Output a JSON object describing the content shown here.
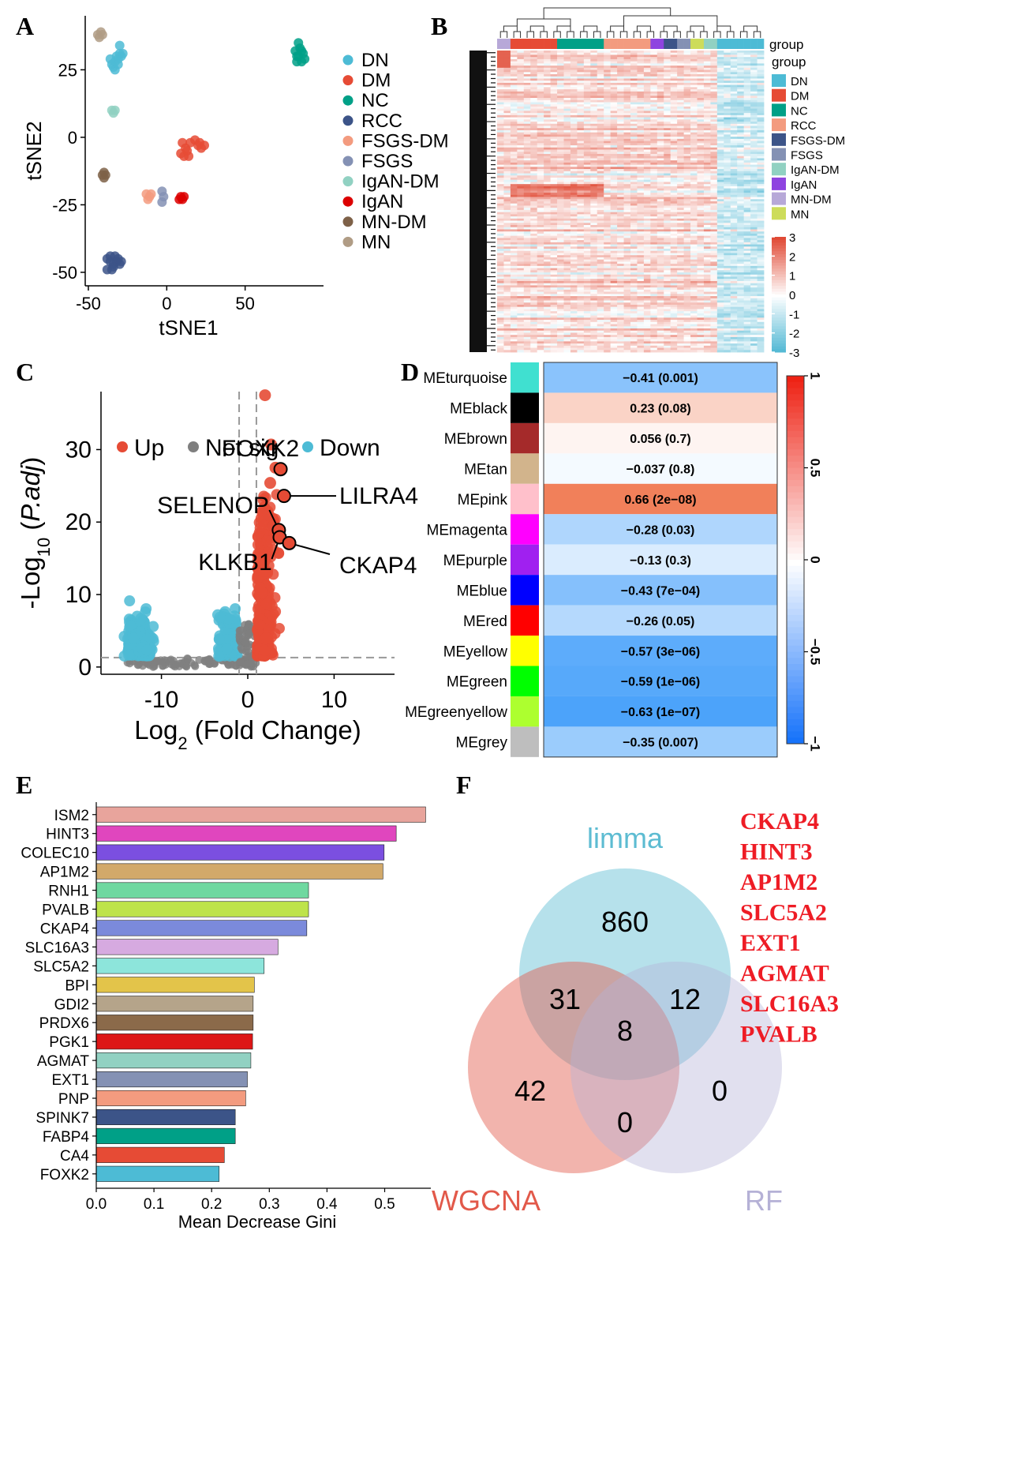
{
  "panel_labels": [
    "A",
    "B",
    "C",
    "D",
    "E",
    "F"
  ],
  "chart_data": [
    {
      "panel": "A",
      "type": "scatter",
      "xlabel": "tSNE1",
      "ylabel": "tSNE2",
      "xlim": [
        -52,
        100
      ],
      "ylim": [
        -55,
        45
      ],
      "xticks": [
        -50,
        0,
        50
      ],
      "yticks": [
        -50,
        -25,
        0,
        25
      ],
      "legend_position": "right",
      "series": [
        {
          "name": "DN",
          "color": "#4DBBD5",
          "points": [
            [
              -35,
              27
            ],
            [
              -33,
              28
            ],
            [
              -31,
              29
            ],
            [
              -30,
              31
            ],
            [
              -32,
              30
            ],
            [
              -34,
              26
            ],
            [
              -29,
              30
            ],
            [
              -33,
              25
            ],
            [
              -31,
              27
            ],
            [
              -28,
              31
            ],
            [
              -30,
              34
            ],
            [
              -36,
              29
            ]
          ]
        },
        {
          "name": "DM",
          "color": "#E64B35",
          "points": [
            [
              9,
              -6
            ],
            [
              12,
              -4
            ],
            [
              15,
              -2
            ],
            [
              18,
              -1
            ],
            [
              20,
              -3
            ],
            [
              22,
              -4
            ],
            [
              24,
              -3
            ],
            [
              11,
              -7
            ],
            [
              13,
              -5
            ],
            [
              10,
              -2
            ],
            [
              21,
              -2
            ],
            [
              14,
              -7
            ]
          ]
        },
        {
          "name": "NC",
          "color": "#00A087",
          "points": [
            [
              82,
              32
            ],
            [
              84,
              30
            ],
            [
              86,
              28
            ],
            [
              87,
              31
            ],
            [
              85,
              33
            ],
            [
              83,
              28
            ],
            [
              88,
              29
            ],
            [
              84,
              35
            ],
            [
              86,
              32
            ],
            [
              83,
              30
            ]
          ]
        },
        {
          "name": "RCC",
          "color": "#3C5488",
          "points": [
            [
              -38,
              -45
            ],
            [
              -36,
              -46
            ],
            [
              -34,
              -47
            ],
            [
              -32,
              -46
            ],
            [
              -30,
              -47
            ],
            [
              -35,
              -49
            ],
            [
              -38,
              -49
            ],
            [
              -33,
              -44
            ],
            [
              -31,
              -45
            ],
            [
              -36,
              -44
            ],
            [
              -34,
              -48
            ],
            [
              -29,
              -46
            ]
          ]
        },
        {
          "name": "FSGS-DM",
          "color": "#F39B7F",
          "points": [
            [
              -13,
              -21
            ],
            [
              -11,
              -22
            ],
            [
              -12,
              -23
            ],
            [
              -10,
              -21
            ]
          ]
        },
        {
          "name": "FSGS",
          "color": "#8491B4",
          "points": [
            [
              -3,
              -20
            ],
            [
              -2,
              -22
            ],
            [
              -3,
              -24
            ]
          ]
        },
        {
          "name": "IgAN-DM",
          "color": "#91D1C2",
          "points": [
            [
              -35,
              10
            ],
            [
              -33,
              10
            ],
            [
              -34,
              9
            ]
          ]
        },
        {
          "name": "IgAN",
          "color": "#DC0000",
          "points": [
            [
              9,
              -22
            ],
            [
              10,
              -23
            ],
            [
              11,
              -22
            ],
            [
              8,
              -23
            ]
          ]
        },
        {
          "name": "MN-DM",
          "color": "#7E6148",
          "points": [
            [
              -40,
              -13
            ],
            [
              -39,
              -14
            ],
            [
              -41,
              -14
            ],
            [
              -40,
              -15
            ]
          ]
        },
        {
          "name": "MN",
          "color": "#B09C85",
          "points": [
            [
              -44,
              38
            ],
            [
              -42,
              39
            ],
            [
              -43,
              37
            ],
            [
              -41,
              38
            ]
          ]
        }
      ]
    },
    {
      "panel": "B",
      "type": "heatmap",
      "annotation_label": "group",
      "legend_title": "group",
      "groups": [
        {
          "name": "DN",
          "color": "#4DBBD5"
        },
        {
          "name": "DM",
          "color": "#E64B35"
        },
        {
          "name": "NC",
          "color": "#00A087"
        },
        {
          "name": "RCC",
          "color": "#F39B7F"
        },
        {
          "name": "FSGS-DM",
          "color": "#3C5488"
        },
        {
          "name": "FSGS",
          "color": "#8491B4"
        },
        {
          "name": "IgAN-DM",
          "color": "#91D1C2"
        },
        {
          "name": "IgAN",
          "color": "#8E44E0"
        },
        {
          "name": "MN-DM",
          "color": "#B7A8D8"
        },
        {
          "name": "MN",
          "color": "#CDDC5A"
        }
      ],
      "column_groups": [
        {
          "group": "MN-DM",
          "n": 2
        },
        {
          "group": "DM",
          "n": 7
        },
        {
          "group": "NC",
          "n": 7
        },
        {
          "group": "RCC",
          "n": 7
        },
        {
          "group": "IgAN",
          "n": 2
        },
        {
          "group": "FSGS-DM",
          "n": 2
        },
        {
          "group": "FSGS",
          "n": 2
        },
        {
          "group": "MN",
          "n": 2
        },
        {
          "group": "IgAN-DM",
          "n": 2
        },
        {
          "group": "DN",
          "n": 7
        }
      ],
      "color_scale": {
        "min": -3,
        "max": 3,
        "ticks": [
          3,
          2,
          1,
          0,
          -1,
          -2,
          -3
        ],
        "low": "#4DB6D3",
        "mid": "#FFFFFF",
        "high": "#E04A35"
      }
    },
    {
      "panel": "C",
      "type": "scatter",
      "xlabel": "Log2 (Fold Change)",
      "ylabel": "-Log10(P.adj)",
      "xlim": [
        -17,
        17
      ],
      "ylim": [
        -1,
        38
      ],
      "xticks": [
        -10,
        0,
        10
      ],
      "yticks": [
        0,
        10,
        20,
        30
      ],
      "thresholds": {
        "x": [
          -1,
          1
        ],
        "y": 1.3
      },
      "legend": [
        {
          "name": "Up",
          "color": "#E64B35"
        },
        {
          "name": "Not sig",
          "color": "#7F7F7F"
        },
        {
          "name": "Down",
          "color": "#4DBBD5"
        }
      ],
      "labeled_genes": [
        {
          "gene": "FOXK2",
          "x": 3.8,
          "y": 27.3
        },
        {
          "gene": "LILRA4",
          "x": 4.2,
          "y": 23.6
        },
        {
          "gene": "SELENOP",
          "x": 3.6,
          "y": 18.9
        },
        {
          "gene": "KLKB1",
          "x": 3.7,
          "y": 17.9
        },
        {
          "gene": "CKAP4",
          "x": 4.8,
          "y": 17.1
        }
      ]
    },
    {
      "panel": "D",
      "type": "heatmap",
      "rows": [
        {
          "module": "MEturquoise",
          "swatch": "#40E0D0",
          "r": -0.41,
          "label": "−0.41 (0.001)"
        },
        {
          "module": "MEblack",
          "swatch": "#000000",
          "r": 0.23,
          "label": "0.23 (0.08)"
        },
        {
          "module": "MEbrown",
          "swatch": "#A52A2A",
          "r": 0.056,
          "label": "0.056 (0.7)"
        },
        {
          "module": "MEtan",
          "swatch": "#D2B48C",
          "r": -0.037,
          "label": "−0.037 (0.8)"
        },
        {
          "module": "MEpink",
          "swatch": "#FFC0CB",
          "r": 0.66,
          "label": "0.66 (2e−08)"
        },
        {
          "module": "MEmagenta",
          "swatch": "#FF00FF",
          "r": -0.28,
          "label": "−0.28 (0.03)"
        },
        {
          "module": "MEpurple",
          "swatch": "#A020F0",
          "r": -0.13,
          "label": "−0.13 (0.3)"
        },
        {
          "module": "MEblue",
          "swatch": "#0000FF",
          "r": -0.43,
          "label": "−0.43 (7e−04)"
        },
        {
          "module": "MEred",
          "swatch": "#FF0000",
          "r": -0.26,
          "label": "−0.26 (0.05)"
        },
        {
          "module": "MEyellow",
          "swatch": "#FFFF00",
          "r": -0.57,
          "label": "−0.57 (3e−06)"
        },
        {
          "module": "MEgreen",
          "swatch": "#00FF00",
          "r": -0.59,
          "label": "−0.59 (1e−06)"
        },
        {
          "module": "MEgreenyellow",
          "swatch": "#ADFF2F",
          "r": -0.63,
          "label": "−0.63 (1e−07)"
        },
        {
          "module": "MEgrey",
          "swatch": "#BEBEBE",
          "r": -0.35,
          "label": "−0.35 (0.007)"
        }
      ],
      "color_scale": {
        "min": -1,
        "max": 1,
        "ticks": [
          "1",
          "0.5",
          "0",
          "−0.5",
          "−1"
        ]
      }
    },
    {
      "panel": "E",
      "type": "bar",
      "orientation": "horizontal",
      "xlabel": "Mean Decrease Gini",
      "xlim": [
        0,
        0.58
      ],
      "xticks": [
        "0.0",
        "0.1",
        "0.2",
        "0.3",
        "0.4",
        "0.5"
      ],
      "bars": [
        {
          "gene": "ISM2",
          "value": 0.571,
          "color": "#E8A49C"
        },
        {
          "gene": "HINT3",
          "value": 0.52,
          "color": "#E046BE"
        },
        {
          "gene": "COLEC10",
          "value": 0.499,
          "color": "#7B4FE0"
        },
        {
          "gene": "AP1M2",
          "value": 0.497,
          "color": "#D2A96A"
        },
        {
          "gene": "RNH1",
          "value": 0.368,
          "color": "#6FD8A0"
        },
        {
          "gene": "PVALB",
          "value": 0.368,
          "color": "#BEE34A"
        },
        {
          "gene": "CKAP4",
          "value": 0.365,
          "color": "#7B8ADB"
        },
        {
          "gene": "SLC16A3",
          "value": 0.315,
          "color": "#D6AAE0"
        },
        {
          "gene": "SLC5A2",
          "value": 0.291,
          "color": "#8DE5DB"
        },
        {
          "gene": "BPI",
          "value": 0.274,
          "color": "#E3C44A"
        },
        {
          "gene": "GDI2",
          "value": 0.272,
          "color": "#B5A48A"
        },
        {
          "gene": "PRDX6",
          "value": 0.272,
          "color": "#8B6A4A"
        },
        {
          "gene": "PGK1",
          "value": 0.271,
          "color": "#DD1616"
        },
        {
          "gene": "AGMAT",
          "value": 0.268,
          "color": "#91D1C2"
        },
        {
          "gene": "EXT1",
          "value": 0.262,
          "color": "#8491B4"
        },
        {
          "gene": "PNP",
          "value": 0.259,
          "color": "#F39B7F"
        },
        {
          "gene": "SPINK7",
          "value": 0.241,
          "color": "#3C5488"
        },
        {
          "gene": "FABP4",
          "value": 0.241,
          "color": "#00A087"
        },
        {
          "gene": "CA4",
          "value": 0.222,
          "color": "#E64B35"
        },
        {
          "gene": "FOXK2",
          "value": 0.213,
          "color": "#4DBBD5"
        }
      ]
    },
    {
      "panel": "F",
      "type": "venn",
      "sets": [
        {
          "name": "limma",
          "color": "#5DBCD2"
        },
        {
          "name": "WGCNA",
          "color": "#E2594A"
        },
        {
          "name": "RF",
          "color": "#B5B1D6"
        }
      ],
      "regions": {
        "limma_only": "860",
        "wgcna_only": "42",
        "rf_only": "0",
        "limma_wgcna": "31",
        "limma_rf": "12",
        "wgcna_rf": "0",
        "all": "8"
      },
      "gene_list": [
        "CKAP4",
        "HINT3",
        "AP1M2",
        "SLC5A2",
        "EXT1",
        "AGMAT",
        "SLC16A3",
        "PVALB"
      ],
      "gene_list_color": "#EE1C25"
    }
  ]
}
